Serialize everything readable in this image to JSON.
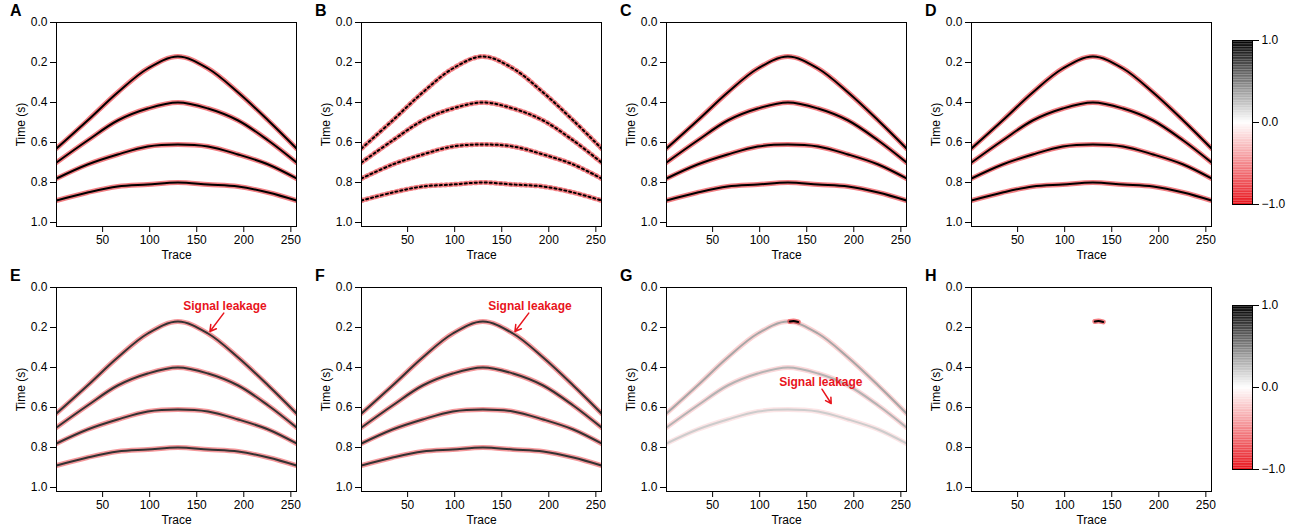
{
  "chart_data": [
    {
      "type": "seismic",
      "panel": "A",
      "xlabel": "Trace",
      "ylabel": "Time (s)",
      "xlim": [
        1,
        256
      ],
      "ylim": [
        0,
        1.02
      ],
      "xticks": [
        50,
        100,
        150,
        200,
        250
      ],
      "yticks": [
        0,
        0.2,
        0.4,
        0.6,
        0.8,
        1
      ],
      "line_style": "solid",
      "events": [
        {
          "x": [
            1,
            34,
            66,
            98,
            130,
            162,
            194,
            226,
            256
          ],
          "y": [
            0.63,
            0.49,
            0.35,
            0.23,
            0.17,
            0.23,
            0.35,
            0.49,
            0.63
          ],
          "amplitude": 1
        },
        {
          "x": [
            1,
            34,
            66,
            98,
            130,
            162,
            194,
            226,
            256
          ],
          "y": [
            0.7,
            0.59,
            0.49,
            0.43,
            0.4,
            0.43,
            0.49,
            0.59,
            0.7
          ],
          "amplitude": 1
        },
        {
          "x": [
            1,
            34,
            66,
            98,
            130,
            162,
            194,
            226,
            256
          ],
          "y": [
            0.78,
            0.71,
            0.66,
            0.62,
            0.61,
            0.62,
            0.66,
            0.71,
            0.78
          ],
          "amplitude": 1
        },
        {
          "x": [
            1,
            34,
            66,
            98,
            130,
            162,
            194,
            226,
            256
          ],
          "y": [
            0.89,
            0.85,
            0.82,
            0.81,
            0.8,
            0.81,
            0.82,
            0.85,
            0.89
          ],
          "amplitude": 1
        }
      ],
      "annotations": []
    },
    {
      "type": "seismic",
      "panel": "B",
      "xlabel": "Trace",
      "ylabel": "Time (s)",
      "xlim": [
        1,
        256
      ],
      "ylim": [
        0,
        1.02
      ],
      "xticks": [
        50,
        100,
        150,
        200,
        250
      ],
      "yticks": [
        0,
        0.2,
        0.4,
        0.6,
        0.8,
        1
      ],
      "line_style": "dotted",
      "events": [
        {
          "x": [
            1,
            34,
            66,
            98,
            130,
            162,
            194,
            226,
            256
          ],
          "y": [
            0.63,
            0.49,
            0.35,
            0.23,
            0.17,
            0.23,
            0.35,
            0.49,
            0.63
          ],
          "amplitude": 1
        },
        {
          "x": [
            1,
            34,
            66,
            98,
            130,
            162,
            194,
            226,
            256
          ],
          "y": [
            0.7,
            0.59,
            0.49,
            0.43,
            0.4,
            0.43,
            0.49,
            0.59,
            0.7
          ],
          "amplitude": 1
        },
        {
          "x": [
            1,
            34,
            66,
            98,
            130,
            162,
            194,
            226,
            256
          ],
          "y": [
            0.78,
            0.71,
            0.66,
            0.62,
            0.61,
            0.62,
            0.66,
            0.71,
            0.78
          ],
          "amplitude": 1
        },
        {
          "x": [
            1,
            34,
            66,
            98,
            130,
            162,
            194,
            226,
            256
          ],
          "y": [
            0.89,
            0.85,
            0.82,
            0.81,
            0.8,
            0.81,
            0.82,
            0.85,
            0.89
          ],
          "amplitude": 1
        }
      ],
      "annotations": []
    },
    {
      "type": "seismic",
      "panel": "C",
      "xlabel": "Trace",
      "ylabel": "Time (s)",
      "xlim": [
        1,
        256
      ],
      "ylim": [
        0,
        1.02
      ],
      "xticks": [
        50,
        100,
        150,
        200,
        250
      ],
      "yticks": [
        0,
        0.2,
        0.4,
        0.6,
        0.8,
        1
      ],
      "line_style": "solid",
      "events": [
        {
          "x": [
            1,
            34,
            66,
            98,
            130,
            162,
            194,
            226,
            256
          ],
          "y": [
            0.63,
            0.49,
            0.35,
            0.23,
            0.17,
            0.23,
            0.35,
            0.49,
            0.63
          ],
          "amplitude": 1
        },
        {
          "x": [
            1,
            34,
            66,
            98,
            130,
            162,
            194,
            226,
            256
          ],
          "y": [
            0.7,
            0.59,
            0.49,
            0.43,
            0.4,
            0.43,
            0.49,
            0.59,
            0.7
          ],
          "amplitude": 1
        },
        {
          "x": [
            1,
            34,
            66,
            98,
            130,
            162,
            194,
            226,
            256
          ],
          "y": [
            0.78,
            0.71,
            0.66,
            0.62,
            0.61,
            0.62,
            0.66,
            0.71,
            0.78
          ],
          "amplitude": 1
        },
        {
          "x": [
            1,
            34,
            66,
            98,
            130,
            162,
            194,
            226,
            256
          ],
          "y": [
            0.89,
            0.85,
            0.82,
            0.81,
            0.8,
            0.81,
            0.82,
            0.85,
            0.89
          ],
          "amplitude": 1
        }
      ],
      "annotations": []
    },
    {
      "type": "seismic",
      "panel": "D",
      "xlabel": "Trace",
      "ylabel": "Time (s)",
      "xlim": [
        1,
        256
      ],
      "ylim": [
        0,
        1.02
      ],
      "xticks": [
        50,
        100,
        150,
        200,
        250
      ],
      "yticks": [
        0,
        0.2,
        0.4,
        0.6,
        0.8,
        1
      ],
      "line_style": "solid",
      "events": [
        {
          "x": [
            1,
            34,
            66,
            98,
            130,
            162,
            194,
            226,
            256
          ],
          "y": [
            0.63,
            0.49,
            0.35,
            0.23,
            0.17,
            0.23,
            0.35,
            0.49,
            0.63
          ],
          "amplitude": 1
        },
        {
          "x": [
            1,
            34,
            66,
            98,
            130,
            162,
            194,
            226,
            256
          ],
          "y": [
            0.7,
            0.59,
            0.49,
            0.43,
            0.4,
            0.43,
            0.49,
            0.59,
            0.7
          ],
          "amplitude": 1
        },
        {
          "x": [
            1,
            34,
            66,
            98,
            130,
            162,
            194,
            226,
            256
          ],
          "y": [
            0.78,
            0.71,
            0.66,
            0.62,
            0.61,
            0.62,
            0.66,
            0.71,
            0.78
          ],
          "amplitude": 1
        },
        {
          "x": [
            1,
            34,
            66,
            98,
            130,
            162,
            194,
            226,
            256
          ],
          "y": [
            0.89,
            0.85,
            0.82,
            0.81,
            0.8,
            0.81,
            0.82,
            0.85,
            0.89
          ],
          "amplitude": 1
        }
      ],
      "annotations": []
    },
    {
      "type": "seismic",
      "panel": "E",
      "xlabel": "Trace",
      "ylabel": "Time (s)",
      "xlim": [
        1,
        256
      ],
      "ylim": [
        0,
        1.02
      ],
      "xticks": [
        50,
        100,
        150,
        200,
        250
      ],
      "yticks": [
        0,
        0.2,
        0.4,
        0.6,
        0.8,
        1
      ],
      "line_style": "solid",
      "events": [
        {
          "x": [
            1,
            34,
            66,
            98,
            130,
            162,
            194,
            226,
            256
          ],
          "y": [
            0.63,
            0.49,
            0.35,
            0.23,
            0.17,
            0.23,
            0.35,
            0.49,
            0.63
          ],
          "amplitude": 0.8
        },
        {
          "x": [
            1,
            34,
            66,
            98,
            130,
            162,
            194,
            226,
            256
          ],
          "y": [
            0.7,
            0.59,
            0.49,
            0.43,
            0.4,
            0.43,
            0.49,
            0.59,
            0.7
          ],
          "amplitude": 0.8
        },
        {
          "x": [
            1,
            34,
            66,
            98,
            130,
            162,
            194,
            226,
            256
          ],
          "y": [
            0.78,
            0.71,
            0.66,
            0.62,
            0.61,
            0.62,
            0.66,
            0.71,
            0.78
          ],
          "amplitude": 0.8
        },
        {
          "x": [
            1,
            34,
            66,
            98,
            130,
            162,
            194,
            226,
            256
          ],
          "y": [
            0.89,
            0.85,
            0.82,
            0.81,
            0.8,
            0.81,
            0.82,
            0.85,
            0.89
          ],
          "amplitude": 0.8
        }
      ],
      "annotations": [
        {
          "text": "Signal leakage",
          "x": 180,
          "y": 0.12,
          "arrow_to": [
            164,
            0.22
          ]
        }
      ]
    },
    {
      "type": "seismic",
      "panel": "F",
      "xlabel": "Trace",
      "ylabel": "Time (s)",
      "xlim": [
        1,
        256
      ],
      "ylim": [
        0,
        1.02
      ],
      "xticks": [
        50,
        100,
        150,
        200,
        250
      ],
      "yticks": [
        0,
        0.2,
        0.4,
        0.6,
        0.8,
        1
      ],
      "line_style": "solid",
      "events": [
        {
          "x": [
            1,
            34,
            66,
            98,
            130,
            162,
            194,
            226,
            256
          ],
          "y": [
            0.63,
            0.49,
            0.35,
            0.23,
            0.17,
            0.23,
            0.35,
            0.49,
            0.63
          ],
          "amplitude": 0.8
        },
        {
          "x": [
            1,
            34,
            66,
            98,
            130,
            162,
            194,
            226,
            256
          ],
          "y": [
            0.7,
            0.59,
            0.49,
            0.43,
            0.4,
            0.43,
            0.49,
            0.59,
            0.7
          ],
          "amplitude": 0.8
        },
        {
          "x": [
            1,
            34,
            66,
            98,
            130,
            162,
            194,
            226,
            256
          ],
          "y": [
            0.78,
            0.71,
            0.66,
            0.62,
            0.61,
            0.62,
            0.66,
            0.71,
            0.78
          ],
          "amplitude": 0.8
        },
        {
          "x": [
            1,
            34,
            66,
            98,
            130,
            162,
            194,
            226,
            256
          ],
          "y": [
            0.89,
            0.85,
            0.82,
            0.81,
            0.8,
            0.81,
            0.82,
            0.85,
            0.89
          ],
          "amplitude": 0.8
        }
      ],
      "annotations": [
        {
          "text": "Signal leakage",
          "x": 180,
          "y": 0.12,
          "arrow_to": [
            164,
            0.22
          ]
        }
      ]
    },
    {
      "type": "seismic",
      "panel": "G",
      "xlabel": "Trace",
      "ylabel": "Time (s)",
      "xlim": [
        1,
        256
      ],
      "ylim": [
        0,
        1.02
      ],
      "xticks": [
        50,
        100,
        150,
        200,
        250
      ],
      "yticks": [
        0,
        0.2,
        0.4,
        0.6,
        0.8,
        1
      ],
      "line_style": "solid",
      "events": [
        {
          "x": [
            1,
            34,
            66,
            98,
            130,
            162,
            194,
            226,
            256
          ],
          "y": [
            0.63,
            0.49,
            0.35,
            0.23,
            0.17,
            0.23,
            0.35,
            0.49,
            0.63
          ],
          "amplitude": 0.35
        },
        {
          "x": [
            1,
            34,
            66,
            98,
            130,
            162,
            194,
            226,
            256
          ],
          "y": [
            0.7,
            0.59,
            0.49,
            0.43,
            0.4,
            0.43,
            0.49,
            0.59,
            0.7
          ],
          "amplitude": 0.3
        },
        {
          "x": [
            1,
            34,
            66,
            98,
            130,
            162,
            194,
            226,
            256
          ],
          "y": [
            0.78,
            0.71,
            0.66,
            0.62,
            0.61,
            0.62,
            0.66,
            0.71,
            0.78
          ],
          "amplitude": 0.2
        },
        {
          "x": [
            132,
            136,
            141
          ],
          "y": [
            0.17,
            0.168,
            0.172
          ],
          "amplitude": 1
        }
      ],
      "annotations": [
        {
          "text": "Signal leakage",
          "x": 165,
          "y": 0.5,
          "arrow_to": [
            176,
            0.58
          ]
        }
      ]
    },
    {
      "type": "seismic",
      "panel": "H",
      "xlabel": "Trace",
      "ylabel": "Time (s)",
      "xlim": [
        1,
        256
      ],
      "ylim": [
        0,
        1.02
      ],
      "xticks": [
        50,
        100,
        150,
        200,
        250
      ],
      "yticks": [
        0,
        0.2,
        0.4,
        0.6,
        0.8,
        1
      ],
      "line_style": "solid",
      "events": [
        {
          "x": [
            132,
            136,
            141
          ],
          "y": [
            0.17,
            0.168,
            0.172
          ],
          "amplitude": 1
        }
      ],
      "annotations": []
    },
    {
      "type": "colorbar",
      "clim": [
        -1,
        1
      ],
      "cticks": [
        -1,
        0,
        1
      ],
      "colors": [
        "#e8141c",
        "#ffffff",
        "#000000"
      ]
    },
    {
      "type": "colorbar",
      "clim": [
        -1,
        1
      ],
      "cticks": [
        -1,
        0,
        1
      ],
      "colors": [
        "#e8141c",
        "#ffffff",
        "#000000"
      ]
    }
  ]
}
